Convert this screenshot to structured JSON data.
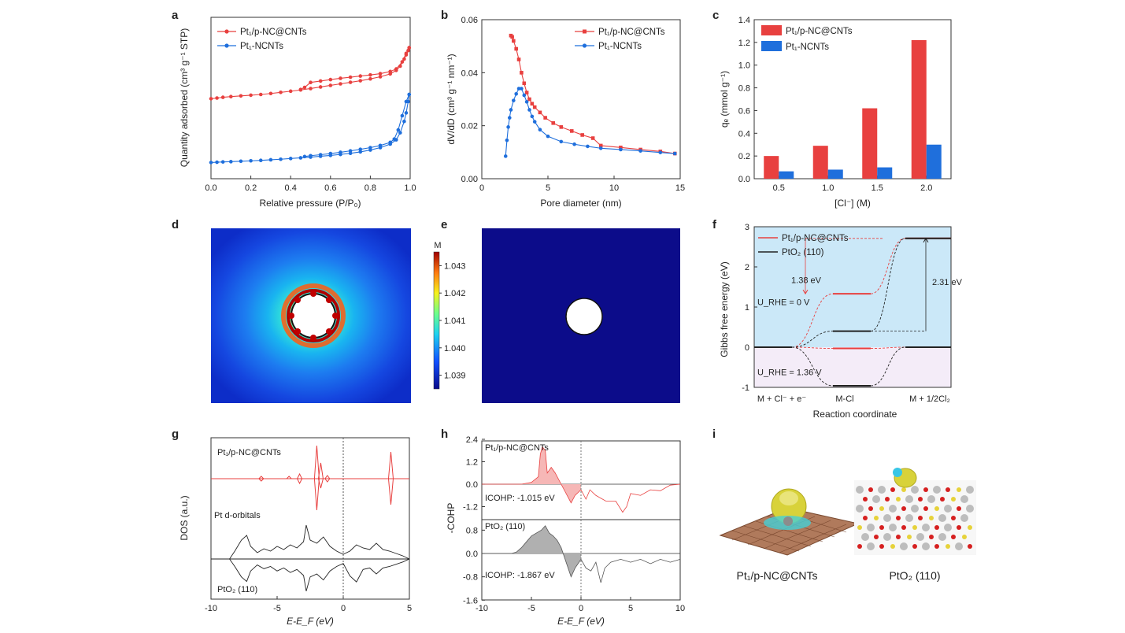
{
  "panel_labels": {
    "a": "a",
    "b": "b",
    "c": "c",
    "d": "d",
    "e": "e",
    "f": "f",
    "g": "g",
    "h": "h",
    "i": "i"
  },
  "colors": {
    "red": "#e8403f",
    "blue": "#1f6fdc",
    "black": "#222222",
    "shade_blue": "#cbe8f8",
    "shade_pink": "#f4ecf8",
    "cohp_red": "#f6b7b6",
    "cohp_gray": "#b0b0b0",
    "field_dark": "#0c0c8a"
  },
  "chart_data": [
    {
      "id": "a",
      "type": "line",
      "xlabel": "Relative pressure (P/P₀)",
      "ylabel": "Quantity adsorbed (cm³ g⁻¹ STP)",
      "xlim": [
        0,
        1
      ],
      "xticks": [
        "0.0",
        "0.2",
        "0.4",
        "0.6",
        "0.8",
        "1.0"
      ],
      "legend_position": "top-left",
      "series": [
        {
          "name": "Pt₁/p-NC@CNTs",
          "color": "#e8403f",
          "adsorption": [
            [
              0.0,
              0.52
            ],
            [
              0.03,
              0.525
            ],
            [
              0.06,
              0.53
            ],
            [
              0.1,
              0.535
            ],
            [
              0.15,
              0.54
            ],
            [
              0.2,
              0.545
            ],
            [
              0.25,
              0.55
            ],
            [
              0.3,
              0.557
            ],
            [
              0.35,
              0.565
            ],
            [
              0.4,
              0.573
            ],
            [
              0.45,
              0.582
            ],
            [
              0.5,
              0.592
            ],
            [
              0.55,
              0.603
            ],
            [
              0.6,
              0.614
            ],
            [
              0.65,
              0.625
            ],
            [
              0.7,
              0.636
            ],
            [
              0.75,
              0.647
            ],
            [
              0.8,
              0.66
            ],
            [
              0.85,
              0.675
            ],
            [
              0.9,
              0.695
            ],
            [
              0.93,
              0.72
            ],
            [
              0.95,
              0.75
            ],
            [
              0.97,
              0.8
            ],
            [
              0.98,
              0.83
            ],
            [
              0.99,
              0.86
            ],
            [
              0.995,
              0.88
            ]
          ],
          "desorption": [
            [
              0.995,
              0.88
            ],
            [
              0.98,
              0.84
            ],
            [
              0.96,
              0.78
            ],
            [
              0.93,
              0.73
            ],
            [
              0.9,
              0.712
            ],
            [
              0.85,
              0.697
            ],
            [
              0.8,
              0.688
            ],
            [
              0.75,
              0.68
            ],
            [
              0.7,
              0.672
            ],
            [
              0.65,
              0.664
            ],
            [
              0.6,
              0.655
            ],
            [
              0.55,
              0.645
            ],
            [
              0.5,
              0.635
            ],
            [
              0.47,
              0.6
            ],
            [
              0.45,
              0.585
            ]
          ]
        },
        {
          "name": "Pt₁-NCNTs",
          "color": "#1f6fdc",
          "adsorption": [
            [
              0.0,
              0.07
            ],
            [
              0.03,
              0.072
            ],
            [
              0.06,
              0.074
            ],
            [
              0.1,
              0.076
            ],
            [
              0.15,
              0.079
            ],
            [
              0.2,
              0.082
            ],
            [
              0.25,
              0.085
            ],
            [
              0.3,
              0.089
            ],
            [
              0.35,
              0.093
            ],
            [
              0.4,
              0.098
            ],
            [
              0.45,
              0.103
            ],
            [
              0.5,
              0.108
            ],
            [
              0.55,
              0.114
            ],
            [
              0.6,
              0.12
            ],
            [
              0.65,
              0.127
            ],
            [
              0.7,
              0.135
            ],
            [
              0.75,
              0.145
            ],
            [
              0.8,
              0.158
            ],
            [
              0.85,
              0.175
            ],
            [
              0.9,
              0.2
            ],
            [
              0.93,
              0.23
            ],
            [
              0.95,
              0.28
            ],
            [
              0.97,
              0.36
            ],
            [
              0.98,
              0.42
            ],
            [
              0.99,
              0.5
            ],
            [
              0.995,
              0.55
            ]
          ],
          "desorption": [
            [
              0.995,
              0.55
            ],
            [
              0.98,
              0.5
            ],
            [
              0.96,
              0.4
            ],
            [
              0.94,
              0.3
            ],
            [
              0.92,
              0.235
            ],
            [
              0.9,
              0.212
            ],
            [
              0.85,
              0.19
            ],
            [
              0.8,
              0.175
            ],
            [
              0.75,
              0.163
            ],
            [
              0.7,
              0.152
            ],
            [
              0.65,
              0.142
            ],
            [
              0.6,
              0.133
            ],
            [
              0.55,
              0.125
            ],
            [
              0.5,
              0.118
            ],
            [
              0.47,
              0.112
            ]
          ]
        }
      ]
    },
    {
      "id": "b",
      "type": "line",
      "xlabel": "Pore diameter (nm)",
      "ylabel": "dV/dD (cm³ g⁻¹ nm⁻¹)",
      "xlim": [
        0,
        15
      ],
      "ylim": [
        0,
        0.06
      ],
      "xticks": [
        "0",
        "5",
        "10",
        "15"
      ],
      "yticks": [
        "0.00",
        "0.02",
        "0.04",
        "0.06"
      ],
      "legend_position": "top-right",
      "series": [
        {
          "name": "Pt₁/p-NC@CNTs",
          "color": "#e8403f",
          "points": [
            [
              2.2,
              0.054
            ],
            [
              2.3,
              0.0535
            ],
            [
              2.4,
              0.052
            ],
            [
              2.6,
              0.049
            ],
            [
              2.8,
              0.045
            ],
            [
              3.0,
              0.04
            ],
            [
              3.2,
              0.036
            ],
            [
              3.4,
              0.0325
            ],
            [
              3.6,
              0.03
            ],
            [
              3.8,
              0.0283
            ],
            [
              4.0,
              0.027
            ],
            [
              4.4,
              0.025
            ],
            [
              4.8,
              0.023
            ],
            [
              5.4,
              0.021
            ],
            [
              6.0,
              0.0195
            ],
            [
              6.8,
              0.018
            ],
            [
              7.6,
              0.0165
            ],
            [
              8.4,
              0.0153
            ],
            [
              9.0,
              0.0125
            ],
            [
              10.5,
              0.0118
            ],
            [
              12.0,
              0.011
            ],
            [
              13.5,
              0.0103
            ],
            [
              14.6,
              0.0095
            ]
          ]
        },
        {
          "name": "Pt₁-NCNTs",
          "color": "#1f6fdc",
          "points": [
            [
              1.8,
              0.0085
            ],
            [
              1.9,
              0.0145
            ],
            [
              2.0,
              0.0195
            ],
            [
              2.1,
              0.023
            ],
            [
              2.2,
              0.026
            ],
            [
              2.4,
              0.0295
            ],
            [
              2.6,
              0.032
            ],
            [
              2.8,
              0.034
            ],
            [
              3.0,
              0.034
            ],
            [
              3.2,
              0.0315
            ],
            [
              3.4,
              0.029
            ],
            [
              3.6,
              0.026
            ],
            [
              3.8,
              0.0235
            ],
            [
              4.0,
              0.0215
            ],
            [
              4.4,
              0.0185
            ],
            [
              5.0,
              0.016
            ],
            [
              6.0,
              0.014
            ],
            [
              7.0,
              0.013
            ],
            [
              8.0,
              0.0122
            ],
            [
              9.0,
              0.0115
            ],
            [
              10.5,
              0.011
            ],
            [
              12.0,
              0.0105
            ],
            [
              13.5,
              0.0099
            ],
            [
              14.6,
              0.0095
            ]
          ]
        }
      ]
    },
    {
      "id": "c",
      "type": "bar",
      "xlabel": "[Cl⁻] (M)",
      "ylabel": "qₑ (mmol g⁻¹)",
      "categories": [
        "0.5",
        "1.0",
        "1.5",
        "2.0"
      ],
      "ylim": [
        0,
        1.4
      ],
      "yticks": [
        "0.0",
        "0.2",
        "0.4",
        "0.6",
        "0.8",
        "1.0",
        "1.2",
        "1.4"
      ],
      "legend_position": "top-left",
      "series": [
        {
          "name": "Pt₁/p-NC@CNTs",
          "color": "#e8403f",
          "values": [
            0.2,
            0.29,
            0.62,
            1.22
          ]
        },
        {
          "name": "Pt₁-NCNTs",
          "color": "#1f6fdc",
          "values": [
            0.065,
            0.08,
            0.1,
            0.3
          ]
        }
      ]
    },
    {
      "id": "d",
      "type": "heatmap",
      "colorbar_unit": "M",
      "colorbar_ticks": [
        "1.039",
        "1.040",
        "1.041",
        "1.042",
        "1.043"
      ],
      "range": [
        1.0385,
        1.0435
      ]
    },
    {
      "id": "e",
      "type": "heatmap"
    },
    {
      "id": "f",
      "type": "line",
      "xlabel": "Reaction coordinate",
      "ylabel": "Gibbs free energy (eV)",
      "ylim": [
        -1,
        3
      ],
      "yticks": [
        "-1",
        "0",
        "1",
        "2",
        "3"
      ],
      "xticks": [
        "M + Cl⁻ + e⁻",
        "M-Cl",
        "M + 1/2Cl₂"
      ],
      "legend_position": "top-left",
      "series": [
        {
          "name": "Pt₁/p-NC@CNTs",
          "color": "#e8403f",
          "levels_U0": [
            0,
            1.33,
            2.71
          ],
          "levels_U136": [
            0,
            -0.03,
            0
          ]
        },
        {
          "name": "PtO₂ (110)",
          "color": "#222222",
          "levels_U0": [
            0,
            0.4,
            2.71
          ],
          "levels_U136": [
            0,
            -0.96,
            0
          ]
        }
      ],
      "annotations": {
        "u0": "U_RHE = 0 V",
        "u136": "U_RHE = 1.36 V",
        "gap_red": "1.38 eV",
        "gap_black": "2.31 eV"
      }
    },
    {
      "id": "g",
      "type": "line",
      "xlabel": "E-E_F (eV)",
      "ylabel": "DOS (a.u.)",
      "xlim": [
        -10,
        5
      ],
      "xticks": [
        "-10",
        "-5",
        "0",
        "5"
      ],
      "labels": {
        "top": "Pt₁/p-NC@CNTs",
        "mid": "Pt d-orbitals",
        "bottom": "PtO₂ (110)"
      }
    },
    {
      "id": "h",
      "type": "area",
      "xlabel": "E-E_F (eV)",
      "ylabel": "-COHP",
      "xlim": [
        -10,
        10
      ],
      "xticks": [
        "-10",
        "-5",
        "0",
        "5",
        "10"
      ],
      "top": {
        "name": "Pt₁/p-NC@CNTs",
        "yticks": [
          "2.4",
          "1.2",
          "0.0",
          "-1.2"
        ],
        "icohp": "ICOHP: -1.015 eV"
      },
      "bottom": {
        "name": "PtO₂ (110)",
        "yticks": [
          "0.8",
          "0.0",
          "-0.8",
          "-1.6"
        ],
        "icohp": "ICOHP: -1.867 eV"
      }
    }
  ],
  "panel_i": {
    "left_label": "Pt₁/p-NC@CNTs",
    "right_label": "PtO₂ (110)"
  }
}
